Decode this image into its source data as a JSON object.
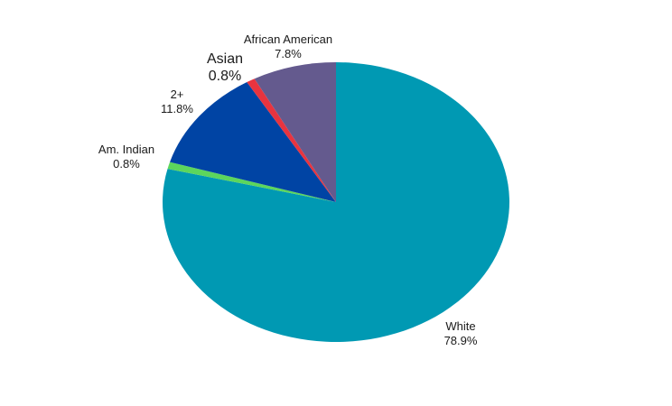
{
  "chart_data": {
    "type": "pie",
    "start_angle_deg": 0,
    "direction": "clockwise",
    "legend": "none",
    "slices": [
      {
        "label": "White",
        "value": 78.9,
        "value_text": "78.9%",
        "color": "#0099B3"
      },
      {
        "label": "Am. Indian",
        "value": 0.8,
        "value_text": "0.8%",
        "color": "#5CD65C"
      },
      {
        "label": "2+",
        "value": 11.8,
        "value_text": "11.8%",
        "color": "#0044A4"
      },
      {
        "label": "Asian",
        "value": 0.8,
        "value_text": "0.8%",
        "color": "#E8343F"
      },
      {
        "label": "African American",
        "value": 7.8,
        "value_text": "7.8%",
        "color": "#645A8E"
      }
    ]
  }
}
